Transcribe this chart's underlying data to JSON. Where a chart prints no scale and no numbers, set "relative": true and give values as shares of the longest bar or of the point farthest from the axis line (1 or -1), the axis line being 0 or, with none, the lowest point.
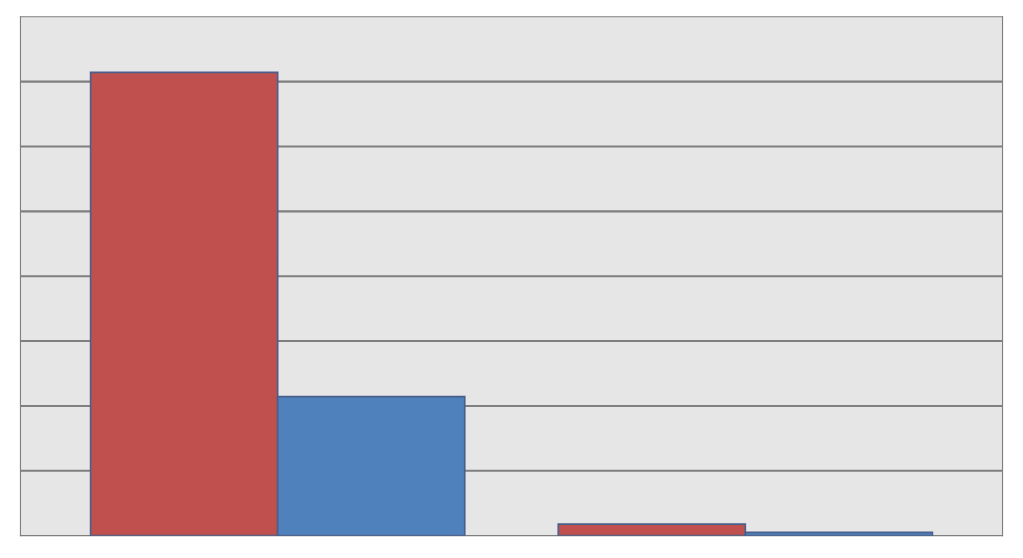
{
  "chart_data": {
    "type": "bar",
    "relative": true,
    "categories": [
      null,
      null
    ],
    "series": [
      {
        "color": "#c0504d",
        "values": [
          1,
          0.025
        ]
      },
      {
        "color": "#4f81bd",
        "values": [
          0.3,
          0.007
        ]
      }
    ],
    "grid": "y"
  }
}
